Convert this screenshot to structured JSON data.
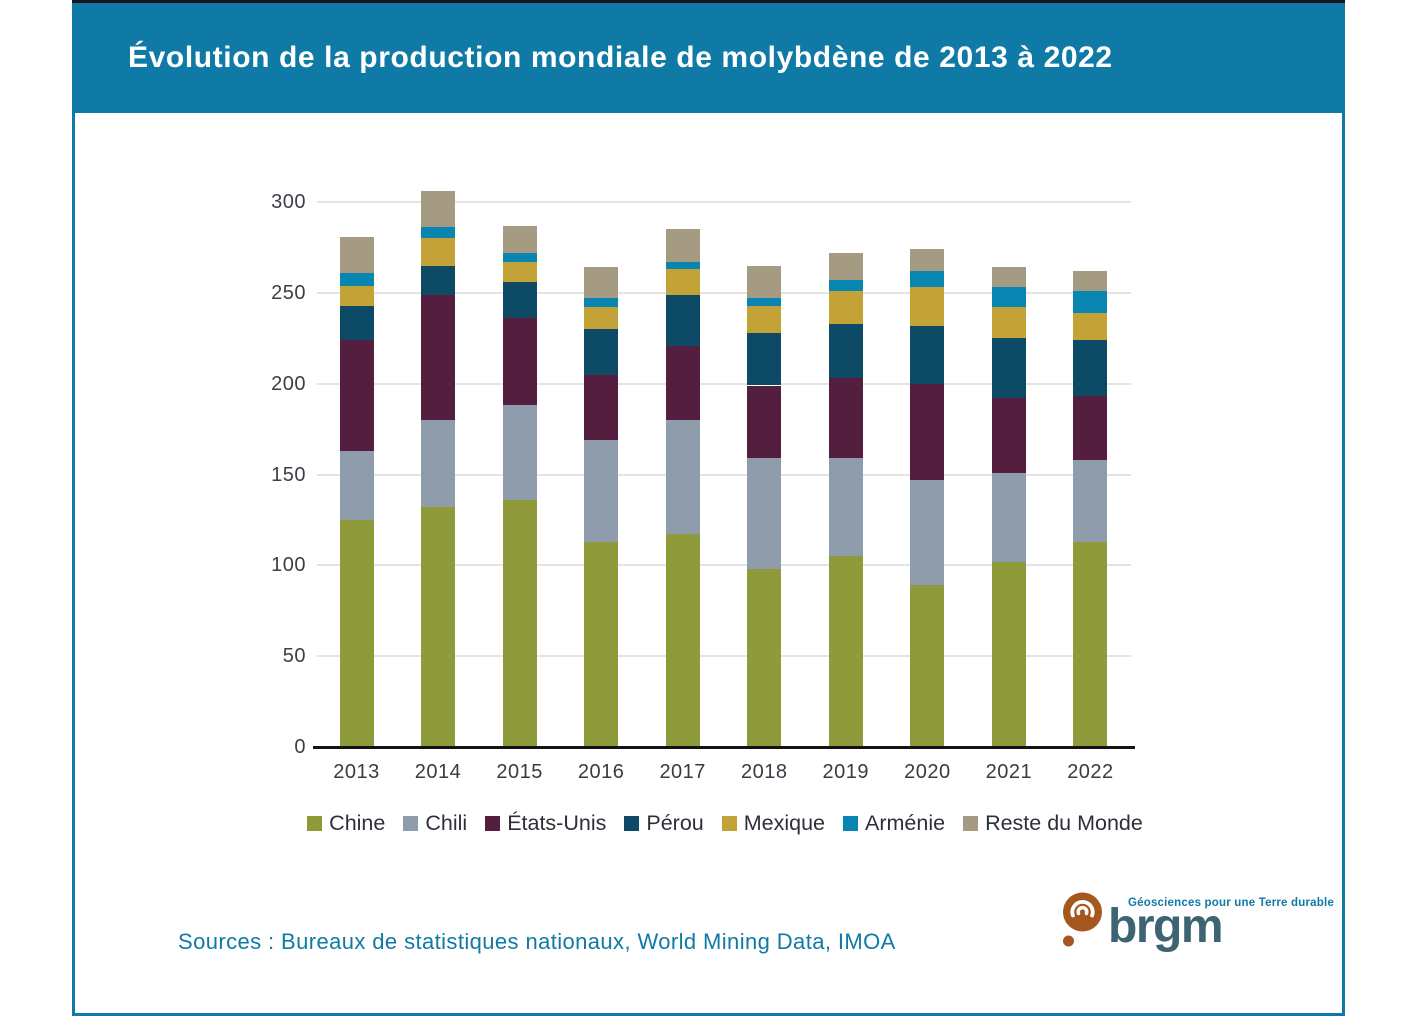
{
  "banner": {
    "title": "Évolution de la production mondiale de molybdène de 2013 à 2022",
    "bg_color": "#107aa6"
  },
  "chart_data": {
    "type": "bar",
    "stacked": true,
    "title": "Évolution de la production mondiale de molybdène de 2013 à 2022",
    "categories": [
      "2013",
      "2014",
      "2015",
      "2016",
      "2017",
      "2018",
      "2019",
      "2020",
      "2021",
      "2022"
    ],
    "series": [
      {
        "name": "Chine",
        "color": "#8f9b3a",
        "values": [
          125,
          132,
          136,
          113,
          117,
          98,
          105,
          89,
          102,
          113
        ]
      },
      {
        "name": "Chili",
        "color": "#8f9cab",
        "values": [
          38,
          48,
          52,
          56,
          63,
          61,
          54,
          58,
          49,
          45
        ]
      },
      {
        "name": "États-Unis",
        "color": "#541f3f",
        "values": [
          61,
          69,
          48,
          36,
          41,
          40,
          44,
          53,
          41,
          35
        ]
      },
      {
        "name": "Pérou",
        "color": "#0c4a66",
        "values": [
          19,
          16,
          20,
          25,
          28,
          29,
          30,
          32,
          33,
          31
        ]
      },
      {
        "name": "Mexique",
        "color": "#c3a237",
        "values": [
          11,
          15,
          11,
          12,
          14,
          15,
          18,
          21,
          17,
          15
        ]
      },
      {
        "name": "Arménie",
        "color": "#0985b2",
        "values": [
          7,
          6,
          5,
          5,
          4,
          4,
          6,
          9,
          11,
          12
        ]
      },
      {
        "name": "Reste du Monde",
        "color": "#a59b83",
        "values": [
          20,
          20,
          15,
          17,
          18,
          18,
          15,
          12,
          11,
          11
        ]
      }
    ],
    "xlabel": "",
    "ylabel": "",
    "ylim": [
      0,
      300
    ],
    "y_ticks": [
      0,
      50,
      100,
      150,
      200,
      250,
      300
    ],
    "grid": true,
    "legend_position": "bottom"
  },
  "footer": {
    "sources_label": "Sources : Bureaux de statistiques nationaux, World Mining Data, IMOA"
  },
  "logo": {
    "wordmark": "brgm",
    "tagline": "Géosciences pour une Terre durable",
    "disc_color": "#a5571f",
    "wordmark_color": "#3c6472"
  }
}
